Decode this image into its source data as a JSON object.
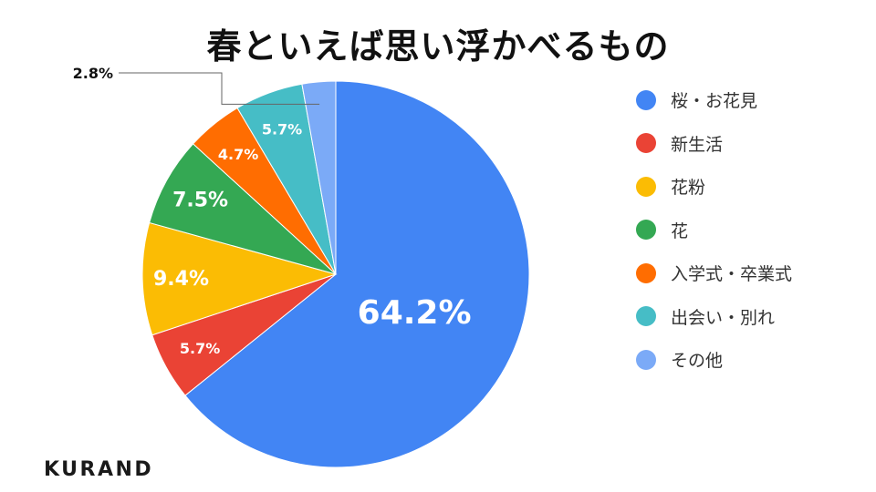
{
  "chart_data": {
    "type": "pie",
    "title": "春といえば思い浮かべるもの",
    "categories": [
      "桜・お花見",
      "新生活",
      "花粉",
      "花",
      "入学式・卒業式",
      "出会い・別れ",
      "その他"
    ],
    "values": [
      64.2,
      5.7,
      9.4,
      7.5,
      4.7,
      5.7,
      2.8
    ],
    "data_labels": [
      "64.2%",
      "5.7%",
      "9.4%",
      "7.5%",
      "4.7%",
      "5.7%",
      "2.8%"
    ],
    "colors": [
      "#4285f4",
      "#ea4335",
      "#fbbc04",
      "#34a853",
      "#ff6d01",
      "#46bdc6",
      "#7baaf7"
    ],
    "legend_placement": "right",
    "start_angle_deg": 0,
    "direction": "clockwise"
  },
  "brand": {
    "logo_text": "KURAND"
  }
}
